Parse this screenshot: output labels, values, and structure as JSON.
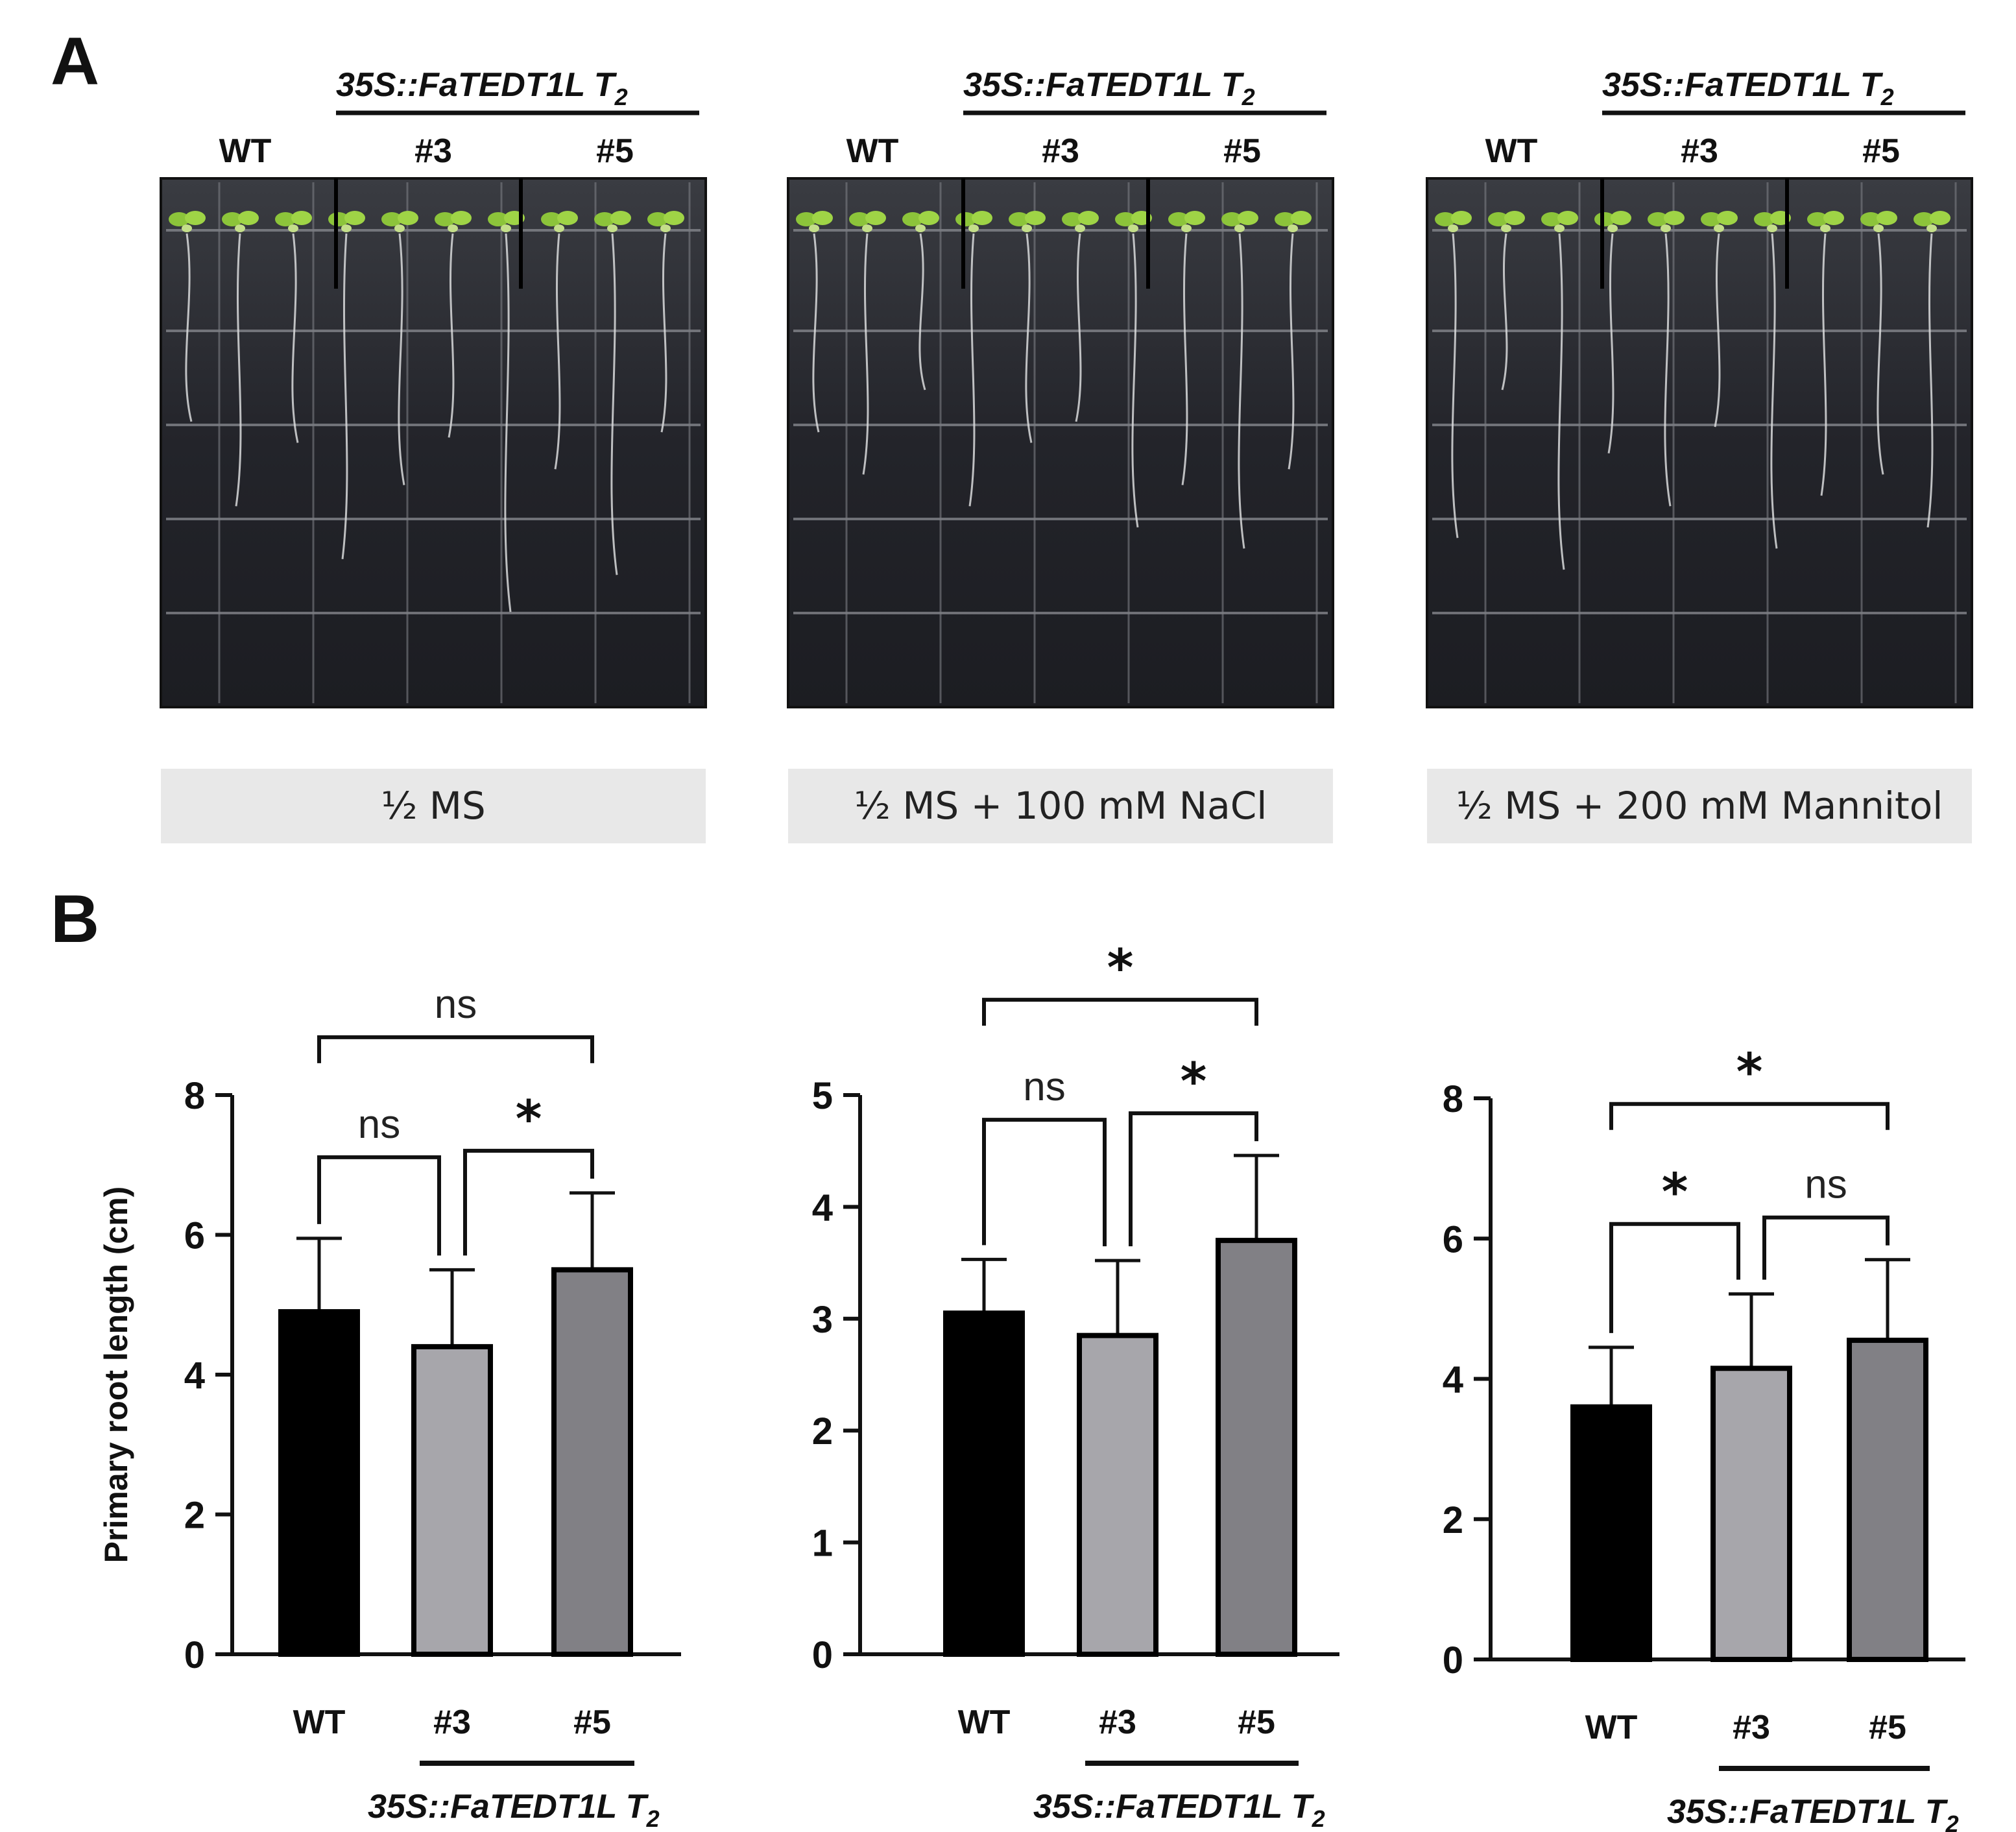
{
  "panels": {
    "a": "A",
    "b": "B"
  },
  "photo_panels": [
    {
      "condition": "½ MS",
      "header": {
        "genotype": "35S::FaTEDT1L T",
        "generation_sub": "2",
        "lines": [
          "WT",
          "#3",
          "#5"
        ]
      }
    },
    {
      "condition": "½ MS + 100 mM NaCl",
      "header": {
        "genotype": "35S::FaTEDT1L T",
        "generation_sub": "2",
        "lines": [
          "WT",
          "#3",
          "#5"
        ]
      }
    },
    {
      "condition": "½ MS + 200 mM Mannitol",
      "header": {
        "genotype": "35S::FaTEDT1L T",
        "generation_sub": "2",
        "lines": [
          "WT",
          "#3",
          "#5"
        ]
      }
    }
  ],
  "colors": {
    "wt": "#000000",
    "line3": "#a7a6ab",
    "line5": "#818085",
    "condition_box": "#e8e8e8",
    "plate_bg": "#24252a",
    "seedling": "#8cc43a"
  },
  "chart_data": [
    {
      "type": "bar",
      "condition": "½ MS",
      "categories": [
        "WT",
        "#3",
        "#5"
      ],
      "values": [
        4.9,
        4.4,
        5.5
      ],
      "errors": [
        1.05,
        1.1,
        1.1
      ],
      "ylabel": "Primary root length (cm)",
      "ylim": [
        0,
        8
      ],
      "yticks": [
        0,
        2,
        4,
        6,
        8
      ],
      "group_label": "35S::FaTEDT1L T",
      "group_label_sub": "2",
      "comparisons": [
        {
          "from": 0,
          "to": 1,
          "label": "ns",
          "level": 0
        },
        {
          "from": 1,
          "to": 2,
          "label": "*",
          "level": 0
        },
        {
          "from": 0,
          "to": 2,
          "label": "ns",
          "level": 1
        }
      ]
    },
    {
      "type": "bar",
      "condition": "½ MS + 100 mM NaCl",
      "categories": [
        "WT",
        "#3",
        "#5"
      ],
      "values": [
        3.05,
        2.85,
        3.7
      ],
      "errors": [
        0.48,
        0.67,
        0.76
      ],
      "ylabel": "",
      "ylim": [
        0,
        5
      ],
      "yticks": [
        0,
        1,
        2,
        3,
        4,
        5
      ],
      "group_label": "35S::FaTEDT1L T",
      "group_label_sub": "2",
      "comparisons": [
        {
          "from": 0,
          "to": 1,
          "label": "ns",
          "level": 0
        },
        {
          "from": 1,
          "to": 2,
          "label": "*",
          "level": 0
        },
        {
          "from": 0,
          "to": 2,
          "label": "*",
          "level": 1
        }
      ]
    },
    {
      "type": "bar",
      "condition": "½ MS + 200 mM Mannitol",
      "categories": [
        "WT",
        "#3",
        "#5"
      ],
      "values": [
        3.6,
        4.15,
        4.55
      ],
      "errors": [
        0.85,
        1.06,
        1.15
      ],
      "ylabel": "",
      "ylim": [
        0,
        8
      ],
      "yticks": [
        0,
        2,
        4,
        6,
        8
      ],
      "group_label": "35S::FaTEDT1L T",
      "group_label_sub": "2",
      "comparisons": [
        {
          "from": 0,
          "to": 1,
          "label": "*",
          "level": 0
        },
        {
          "from": 1,
          "to": 2,
          "label": "ns",
          "level": 0
        },
        {
          "from": 0,
          "to": 2,
          "label": "*",
          "level": 1
        }
      ]
    }
  ]
}
